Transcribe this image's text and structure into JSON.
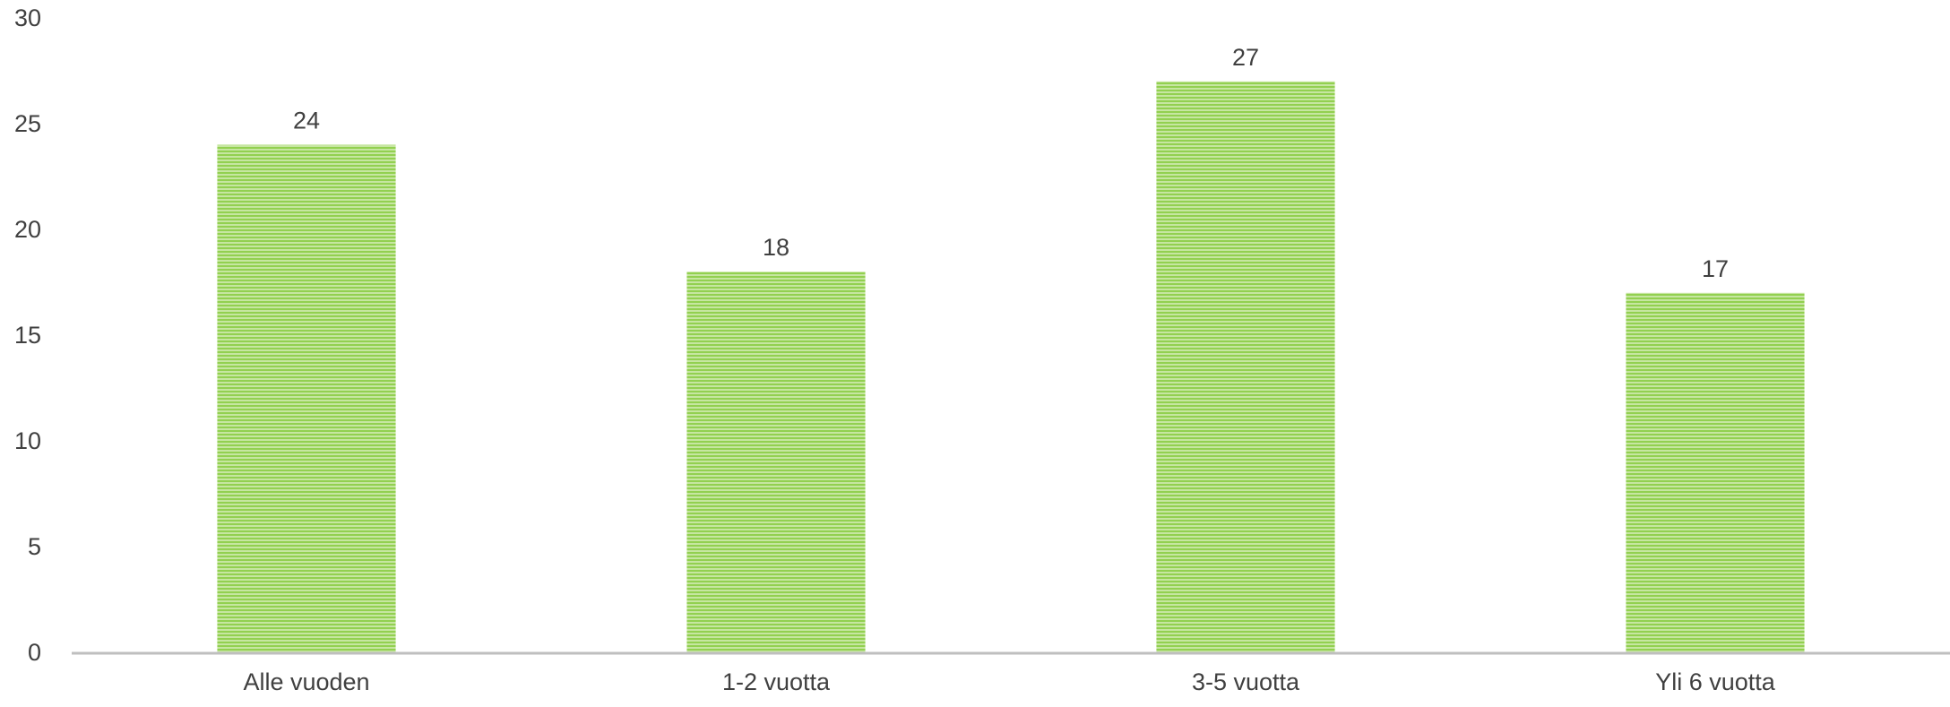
{
  "chart_data": {
    "type": "bar",
    "title": "",
    "xlabel": "",
    "ylabel": "",
    "categories": [
      "Alle vuoden",
      "1-2 vuotta",
      "3-5 vuotta",
      "Yli 6 vuotta"
    ],
    "values": [
      24,
      18,
      27,
      17
    ],
    "data_labels": [
      "24",
      "18",
      "27",
      "17"
    ],
    "ylim": [
      0,
      30
    ],
    "yticks": [
      0,
      5,
      10,
      15,
      20,
      25,
      30
    ],
    "ytick_labels": [
      "0",
      "5",
      "10",
      "15",
      "20",
      "25",
      "30"
    ],
    "grid": false,
    "legend": "none",
    "colors": {
      "bar": "#92d050",
      "bar_stripe": "#c6e6a1",
      "axis": "#bfbfbf",
      "text": "#404040"
    }
  }
}
